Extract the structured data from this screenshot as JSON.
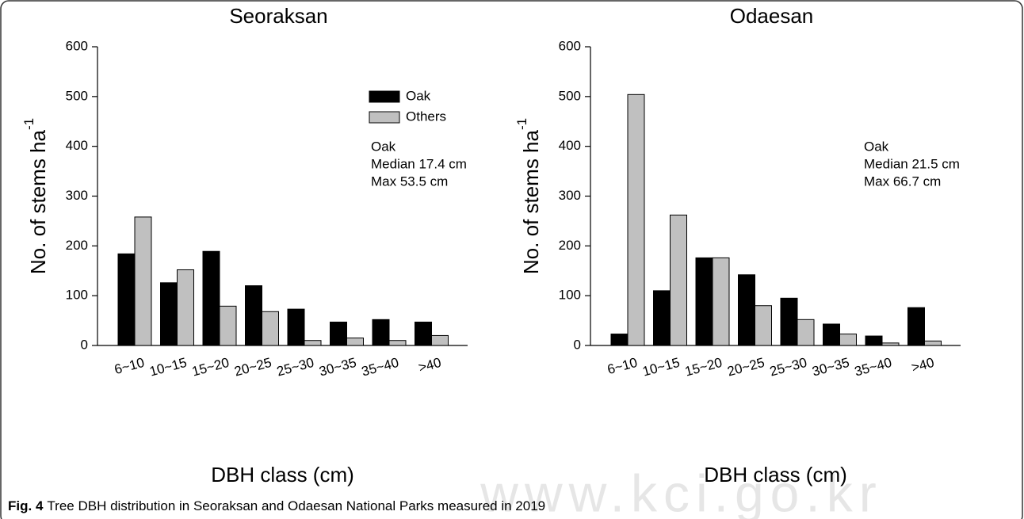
{
  "chart_data": [
    {
      "type": "bar",
      "title": "Seoraksan",
      "xlabel": "DBH class (cm)",
      "ylabel": "No. of stems ha",
      "ylabel_superscript": "-1",
      "categories": [
        "6~10",
        "10~15",
        "15~20",
        "20~25",
        "25~30",
        "30~35",
        "35~40",
        ">40"
      ],
      "series": [
        {
          "name": "Oak",
          "color": "#000000",
          "values": [
            184,
            126,
            189,
            120,
            73,
            47,
            52,
            47
          ]
        },
        {
          "name": "Others",
          "color": "#c0c0c0",
          "values": [
            258,
            152,
            79,
            68,
            10,
            15,
            10,
            20
          ]
        }
      ],
      "ylim": [
        0,
        600
      ],
      "yticks": [
        0,
        100,
        200,
        300,
        400,
        500,
        600
      ],
      "legend": "upper right",
      "annotation": [
        "Oak",
        "Median 17.4 cm",
        "Max 53.5 cm"
      ]
    },
    {
      "type": "bar",
      "title": "Odaesan",
      "xlabel": "DBH class (cm)",
      "ylabel": "No. of stems ha",
      "ylabel_superscript": "-1",
      "categories": [
        "6~10",
        "10~15",
        "15~20",
        "20~25",
        "25~30",
        "30~35",
        "35~40",
        ">40"
      ],
      "series": [
        {
          "color": "#000000",
          "values": [
            23,
            110,
            176,
            142,
            95,
            43,
            19,
            76
          ]
        },
        {
          "color": "#c0c0c0",
          "values": [
            504,
            262,
            176,
            80,
            52,
            23,
            5,
            9
          ]
        }
      ],
      "ylim": [
        0,
        600
      ],
      "yticks": [
        0,
        100,
        200,
        300,
        400,
        500,
        600
      ],
      "annotation": [
        "Oak",
        "Median 21.5 cm",
        "Max 66.7 cm"
      ]
    }
  ],
  "caption": {
    "label": "Fig. 4",
    "text": "Tree DBH distribution in Seoraksan and Odaesan National Parks measured in 2019"
  },
  "watermark": "www.kci.go.kr"
}
